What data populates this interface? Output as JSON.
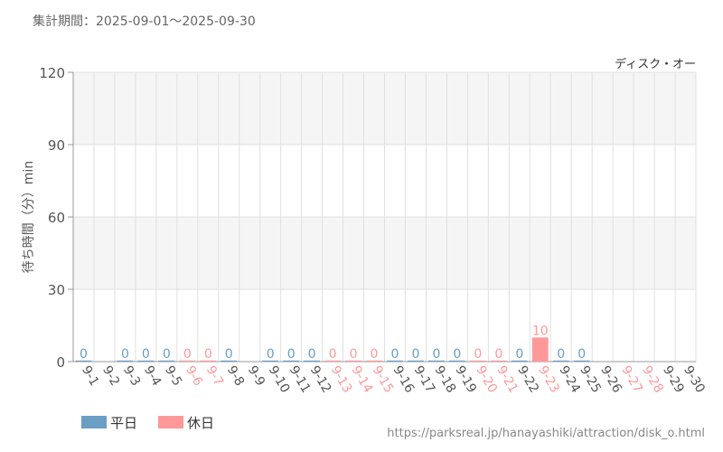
{
  "period_label": "集計期間：2025-09-01～2025-09-30",
  "source_url": "https://parksreal.jp/hanayashiki/attraction/disk_o.html",
  "colors": {
    "weekday": "#6a9ec5",
    "holiday": "#ff9999",
    "band": "#f5f5f5",
    "grid": "#e0e0e0",
    "axis": "#999999",
    "text": "#555555"
  },
  "chart_data": {
    "type": "bar",
    "title": "ディスク・オー",
    "ylabel": "待ち時間（分）min",
    "xlabel": "",
    "ylim": [
      0,
      120
    ],
    "yticks": [
      0,
      30,
      60,
      90,
      120
    ],
    "grid": true,
    "legend_position": "bottom-left",
    "legend": [
      {
        "name": "平日",
        "color_key": "weekday"
      },
      {
        "name": "休日",
        "color_key": "holiday"
      }
    ],
    "categories": [
      "9-1",
      "9-2",
      "9-3",
      "9-4",
      "9-5",
      "9-6",
      "9-7",
      "9-8",
      "9-9",
      "9-10",
      "9-11",
      "9-12",
      "9-13",
      "9-14",
      "9-15",
      "9-16",
      "9-17",
      "9-18",
      "9-19",
      "9-20",
      "9-21",
      "9-22",
      "9-23",
      "9-24",
      "9-25",
      "9-26",
      "9-27",
      "9-28",
      "9-29",
      "9-30"
    ],
    "values": [
      0,
      null,
      0,
      0,
      0,
      0,
      0,
      0,
      null,
      0,
      0,
      0,
      0,
      0,
      0,
      0,
      0,
      0,
      0,
      0,
      0,
      0,
      10,
      0,
      0,
      null,
      null,
      null,
      null,
      null
    ],
    "day_types": [
      "weekday",
      "weekday",
      "weekday",
      "weekday",
      "weekday",
      "holiday",
      "holiday",
      "weekday",
      "weekday",
      "weekday",
      "weekday",
      "weekday",
      "holiday",
      "holiday",
      "holiday",
      "weekday",
      "weekday",
      "weekday",
      "weekday",
      "holiday",
      "holiday",
      "weekday",
      "holiday",
      "weekday",
      "weekday",
      "weekday",
      "holiday",
      "holiday",
      "weekday",
      "weekday"
    ]
  }
}
